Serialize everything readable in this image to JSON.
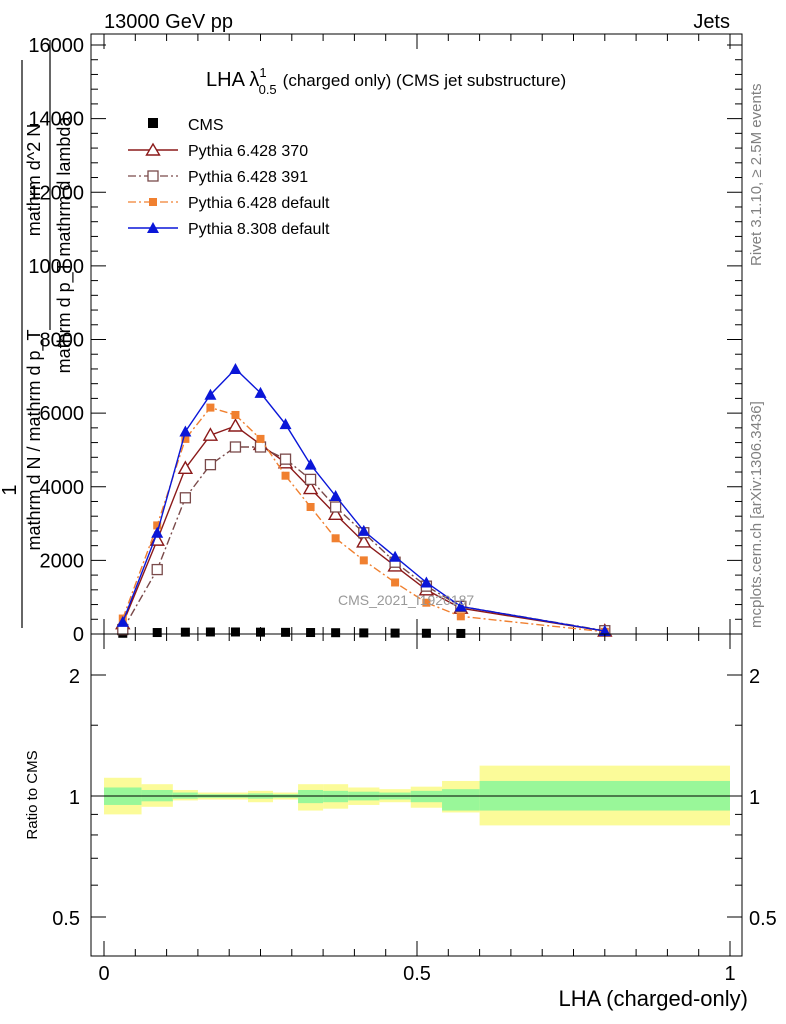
{
  "header": {
    "left": "13000 GeV pp",
    "right": "Jets"
  },
  "plot_title": {
    "main": "LHA λ",
    "sup": "1",
    "sub": "0.5",
    "rest": "(charged only) (CMS jet substructure)"
  },
  "side_labels": {
    "rivet": "Rivet 3.1.10, ≥ 2.5M events",
    "mcplots": "mcplots.cern.ch [arXiv:1306.3436]"
  },
  "watermark": "CMS_2021_I1920187",
  "y_axis_label": {
    "line1": "1",
    "line1_denominator": "mathrm d N / mathrm d p_T",
    "line2_numerator": "mathrm d^2 N",
    "line2_denominator": "mathrm d p_T mathrm d lambda"
  },
  "ratio_label": "Ratio to CMS",
  "x_axis_label": "LHA (charged-only)",
  "colors": {
    "cms": "#000000",
    "p370": "#8b1a1a",
    "p391": "#7a4a4a",
    "p6def": "#f08030",
    "p8": "#0a16d8",
    "band_inner": "#99f799",
    "band_outer": "#fbfb99"
  },
  "chart_data": [
    {
      "type": "line",
      "title": "LHA λ^1_0.5 (charged only) (CMS jet substructure)",
      "xlabel": "",
      "ylabel": "1 / (mathrm d N / mathrm d p_T)  mathrm d^2 N / (mathrm d p_T mathrm d lambda)",
      "xlim": [
        -0.02,
        1.0
      ],
      "ylim": [
        0,
        16000
      ],
      "yticks": [
        0,
        2000,
        4000,
        6000,
        8000,
        10000,
        12000,
        14000,
        16000
      ],
      "ytick_labels": [
        "0",
        "2000",
        "4000",
        "6000",
        "8000",
        "10000",
        "12000",
        "14000",
        "16000"
      ],
      "legend_position": "top-left",
      "series": [
        {
          "name": "CMS",
          "marker": "square",
          "x": [
            0.03,
            0.085,
            0.13,
            0.17,
            0.21,
            0.25,
            0.29,
            0.33,
            0.37,
            0.415,
            0.465,
            0.515,
            0.57
          ],
          "values": [
            20,
            40,
            50,
            55,
            55,
            50,
            45,
            40,
            35,
            30,
            25,
            20,
            15
          ]
        },
        {
          "name": "Pythia 6.428 370",
          "marker": "triangle-open",
          "dash": "solid",
          "x": [
            0.03,
            0.085,
            0.13,
            0.17,
            0.21,
            0.25,
            0.29,
            0.33,
            0.37,
            0.415,
            0.465,
            0.515,
            0.57,
            0.8
          ],
          "values": [
            280,
            2550,
            4500,
            5400,
            5650,
            5150,
            4650,
            3950,
            3250,
            2500,
            1850,
            1200,
            700,
            80
          ]
        },
        {
          "name": "Pythia 6.428 391",
          "marker": "square-open",
          "dash": "dashdot",
          "x": [
            0.03,
            0.085,
            0.13,
            0.17,
            0.21,
            0.25,
            0.29,
            0.33,
            0.37,
            0.415,
            0.465,
            0.515,
            0.57,
            0.8
          ],
          "values": [
            120,
            1750,
            3700,
            4600,
            5080,
            5080,
            4750,
            4200,
            3450,
            2750,
            1950,
            1300,
            750,
            90
          ]
        },
        {
          "name": "Pythia 6.428 default",
          "marker": "square-small",
          "dash": "dashdot",
          "x": [
            0.03,
            0.085,
            0.13,
            0.17,
            0.21,
            0.25,
            0.29,
            0.33,
            0.37,
            0.415,
            0.465,
            0.515,
            0.57,
            0.8
          ],
          "values": [
            420,
            2950,
            5300,
            6150,
            5950,
            5300,
            4300,
            3450,
            2600,
            2000,
            1400,
            850,
            480,
            60
          ]
        },
        {
          "name": "Pythia 8.308 default",
          "marker": "triangle",
          "dash": "solid",
          "x": [
            0.03,
            0.085,
            0.13,
            0.17,
            0.21,
            0.25,
            0.29,
            0.33,
            0.37,
            0.415,
            0.465,
            0.515,
            0.57,
            0.8
          ],
          "values": [
            330,
            2750,
            5500,
            6500,
            7200,
            6550,
            5700,
            4600,
            3750,
            2800,
            2100,
            1400,
            750,
            80
          ]
        }
      ]
    },
    {
      "type": "area",
      "title": "",
      "xlabel": "LHA (charged-only)",
      "ylabel": "Ratio to CMS",
      "xlim": [
        -0.02,
        1.0
      ],
      "ylim": [
        0.4,
        2.5
      ],
      "log_y": true,
      "xticks": [
        0,
        0.5,
        1
      ],
      "xtick_labels": [
        "0",
        "0.5",
        "1"
      ],
      "yticks": [
        0.5,
        1,
        2
      ],
      "ytick_labels": [
        "0.5",
        "1",
        "2"
      ],
      "bins": [
        {
          "x0": 0.0,
          "x1": 0.06,
          "inner": [
            0.95,
            1.05
          ],
          "outer": [
            0.9,
            1.11
          ]
        },
        {
          "x0": 0.06,
          "x1": 0.11,
          "inner": [
            0.97,
            1.035
          ],
          "outer": [
            0.94,
            1.07
          ]
        },
        {
          "x0": 0.11,
          "x1": 0.15,
          "inner": [
            0.985,
            1.02
          ],
          "outer": [
            0.975,
            1.035
          ]
        },
        {
          "x0": 0.15,
          "x1": 0.23,
          "inner": [
            0.99,
            1.01
          ],
          "outer": [
            0.98,
            1.02
          ]
        },
        {
          "x0": 0.23,
          "x1": 0.27,
          "inner": [
            0.985,
            1.015
          ],
          "outer": [
            0.965,
            1.03
          ]
        },
        {
          "x0": 0.27,
          "x1": 0.31,
          "inner": [
            0.99,
            1.01
          ],
          "outer": [
            0.98,
            1.02
          ]
        },
        {
          "x0": 0.31,
          "x1": 0.35,
          "inner": [
            0.96,
            1.035
          ],
          "outer": [
            0.92,
            1.07
          ]
        },
        {
          "x0": 0.35,
          "x1": 0.39,
          "inner": [
            0.965,
            1.03
          ],
          "outer": [
            0.93,
            1.07
          ]
        },
        {
          "x0": 0.39,
          "x1": 0.44,
          "inner": [
            0.975,
            1.025
          ],
          "outer": [
            0.95,
            1.05
          ]
        },
        {
          "x0": 0.44,
          "x1": 0.49,
          "inner": [
            0.98,
            1.02
          ],
          "outer": [
            0.965,
            1.04
          ]
        },
        {
          "x0": 0.49,
          "x1": 0.54,
          "inner": [
            0.965,
            1.03
          ],
          "outer": [
            0.935,
            1.055
          ]
        },
        {
          "x0": 0.54,
          "x1": 0.6,
          "inner": [
            0.92,
            1.04
          ],
          "outer": [
            0.91,
            1.09
          ]
        },
        {
          "x0": 0.6,
          "x1": 1.0,
          "inner": [
            0.92,
            1.09
          ],
          "outer": [
            0.845,
            1.19
          ]
        }
      ]
    }
  ]
}
